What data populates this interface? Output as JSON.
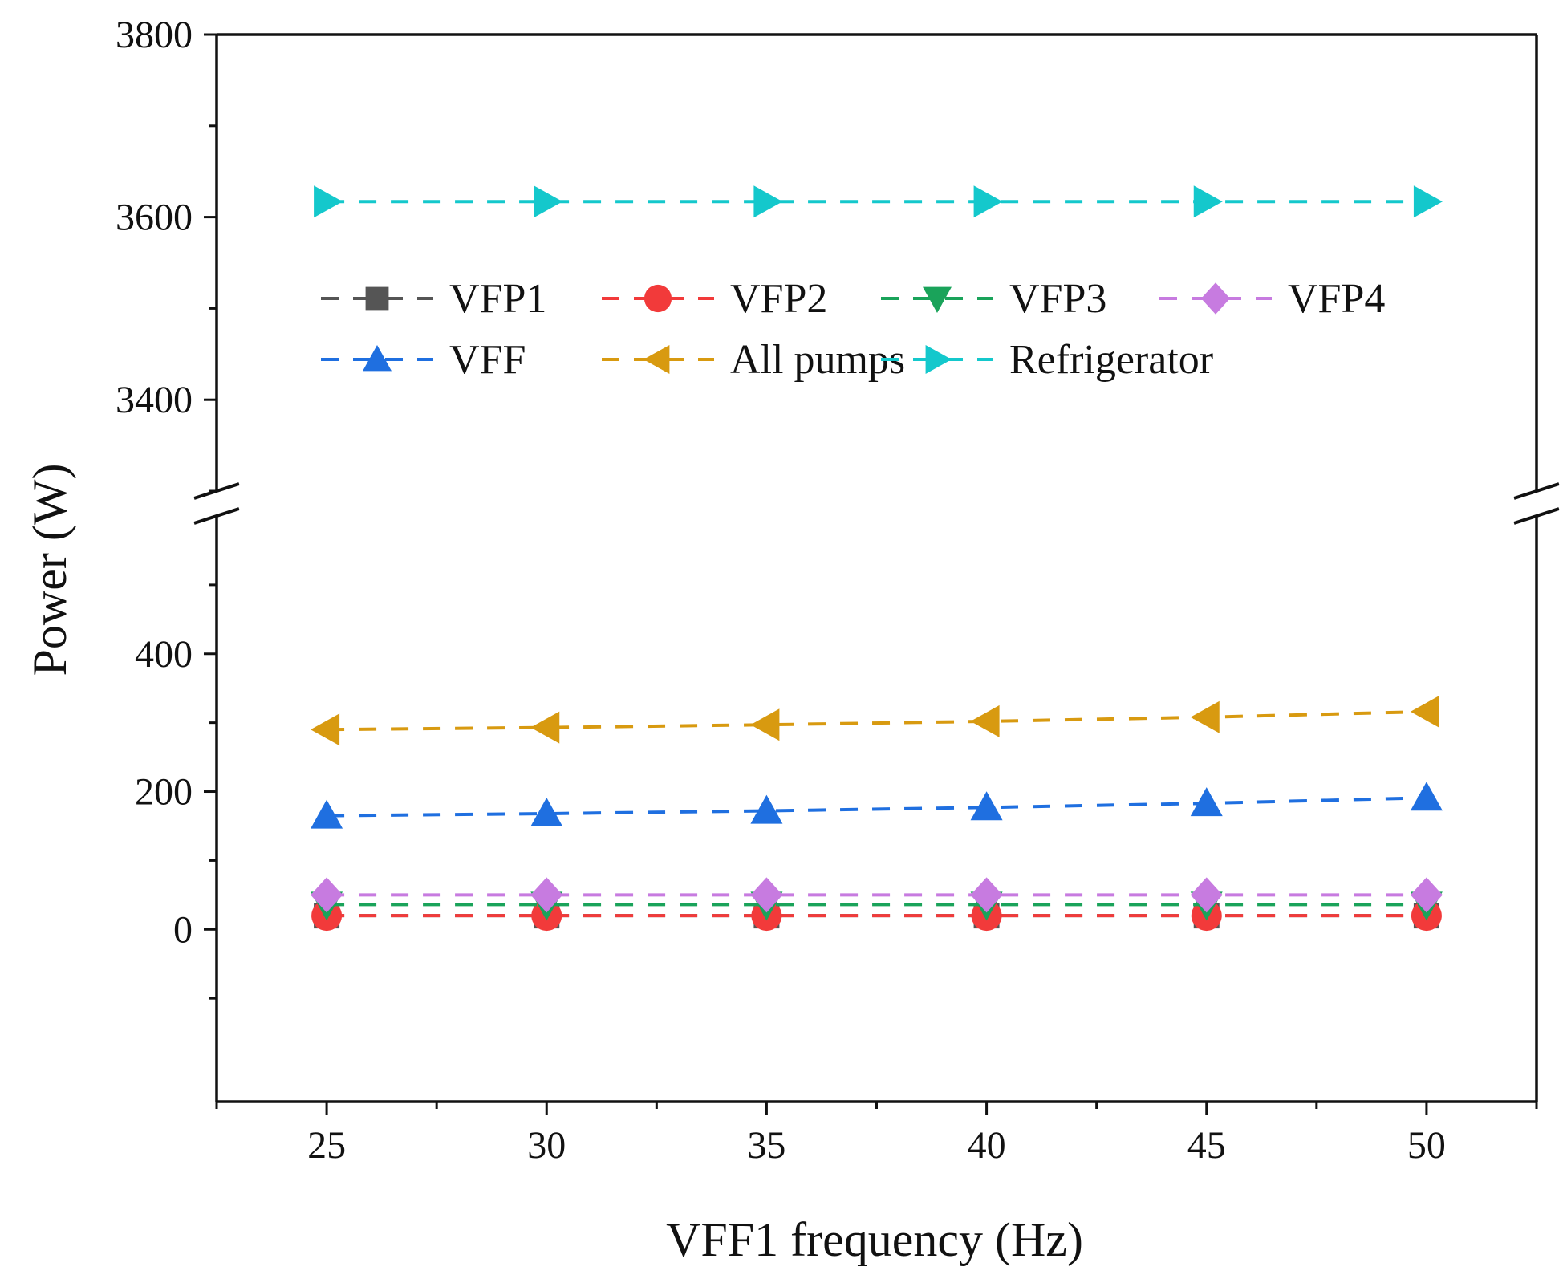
{
  "chart_data": {
    "type": "line",
    "xlabel": "VFF1 frequency (Hz)",
    "ylabel": "Power (W)",
    "x": [
      25,
      30,
      35,
      40,
      45,
      50
    ],
    "xlim": [
      22.5,
      52.5
    ],
    "xticks": [
      25,
      30,
      35,
      40,
      45,
      50
    ],
    "y_break": {
      "lower_range": [
        -250,
        600
      ],
      "upper_range": [
        3300,
        3800
      ],
      "lower_ticks": [
        0,
        200,
        400
      ],
      "upper_ticks": [
        3400,
        3600,
        3800
      ]
    },
    "legend_placement": "upper-middle, inside plot",
    "series": [
      {
        "name": "VFP1",
        "marker": "square",
        "color": "#555555",
        "values": [
          20,
          20,
          20,
          20,
          20,
          20
        ]
      },
      {
        "name": "VFP2",
        "marker": "circle",
        "color": "#f23a3a",
        "values": [
          20,
          20,
          20,
          20,
          20,
          20
        ]
      },
      {
        "name": "VFP3",
        "marker": "triangle-down",
        "color": "#1aa35a",
        "values": [
          36,
          36,
          36,
          36,
          36,
          36
        ]
      },
      {
        "name": "VFP4",
        "marker": "diamond",
        "color": "#c77be0",
        "values": [
          50,
          50,
          50,
          50,
          50,
          50
        ]
      },
      {
        "name": "VFF",
        "marker": "triangle-up",
        "color": "#1f6fe0",
        "values": [
          165,
          168,
          172,
          177,
          183,
          191
        ]
      },
      {
        "name": "All pumps",
        "marker": "triangle-left",
        "color": "#d89a10",
        "values": [
          290,
          293,
          297,
          302,
          308,
          316
        ]
      },
      {
        "name": "Refrigerator",
        "marker": "triangle-right",
        "color": "#14c8cc",
        "values": [
          3617,
          3617,
          3617,
          3617,
          3617,
          3617
        ]
      }
    ]
  }
}
